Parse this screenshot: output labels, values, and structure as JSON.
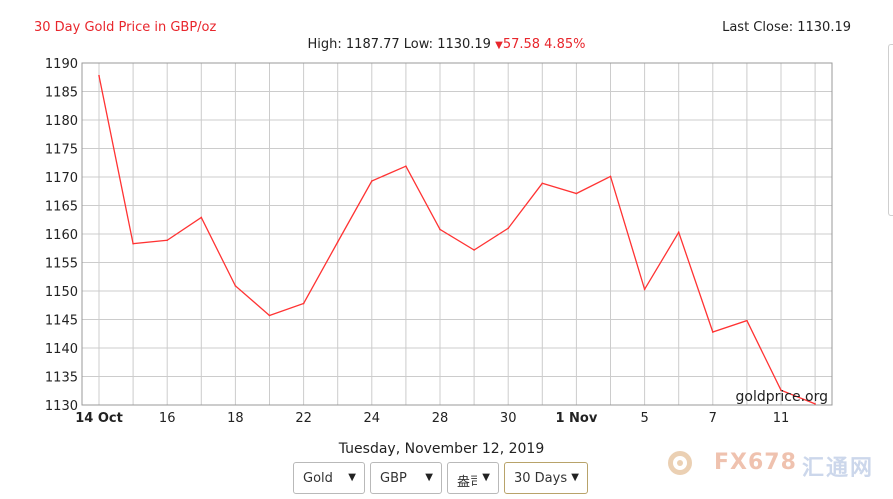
{
  "header": {
    "title": "30 Day Gold Price in GBP/oz",
    "last_close": "Last Close: 1130.19",
    "stats_prefix": "High: 1187.77 Low: 1130.19",
    "change": "57.58 4.85%",
    "change_direction": "down"
  },
  "date_label": "Tuesday, November 12, 2019",
  "controls": {
    "metal": "Gold",
    "currency": "GBP",
    "unit": "盎司",
    "range": "30 Days"
  },
  "watermark": {
    "text": "FX678",
    "cn": "汇通网"
  },
  "colors": {
    "line": "#ff3333",
    "title": "#e8262c",
    "grid": "#cccccc"
  },
  "chart_data": {
    "type": "line",
    "title": "30 Day Gold Price in GBP/oz",
    "x_index": [
      0,
      1,
      2,
      3,
      4,
      5,
      6,
      7,
      8,
      9,
      10,
      11,
      12,
      13,
      14,
      15,
      16,
      17,
      18,
      19,
      20,
      21
    ],
    "x_ticks": [
      {
        "i": 0,
        "label": "14 Oct",
        "bold": true
      },
      {
        "i": 2,
        "label": "16"
      },
      {
        "i": 4,
        "label": "18"
      },
      {
        "i": 6,
        "label": "22"
      },
      {
        "i": 8,
        "label": "24"
      },
      {
        "i": 10,
        "label": "28"
      },
      {
        "i": 12,
        "label": "30"
      },
      {
        "i": 14,
        "label": "1 Nov",
        "bold": true
      },
      {
        "i": 16,
        "label": "5"
      },
      {
        "i": 18,
        "label": "7"
      },
      {
        "i": 20,
        "label": "11"
      }
    ],
    "values": [
      1187.77,
      1158.3,
      1158.9,
      1162.9,
      1150.9,
      1145.7,
      1147.8,
      1158.6,
      1169.3,
      1171.9,
      1160.8,
      1157.2,
      1161.0,
      1168.9,
      1167.1,
      1170.1,
      1150.3,
      1160.3,
      1142.8,
      1144.8,
      1132.6,
      1130.19
    ],
    "ylim": [
      1130,
      1190
    ],
    "y_ticks": [
      1130,
      1135,
      1140,
      1145,
      1150,
      1155,
      1160,
      1165,
      1170,
      1175,
      1180,
      1185,
      1190
    ],
    "grid": true,
    "source_label": "goldprice.org"
  }
}
